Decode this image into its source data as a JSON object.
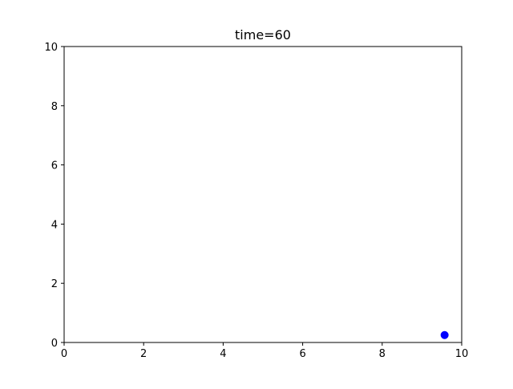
{
  "chart_data": {
    "type": "scatter",
    "title": "time=60",
    "xlabel": "",
    "ylabel": "",
    "xlim": [
      0,
      10
    ],
    "ylim": [
      0,
      10
    ],
    "x_ticks": [
      0,
      2,
      4,
      6,
      8,
      10
    ],
    "y_ticks": [
      0,
      2,
      4,
      6,
      8,
      10
    ],
    "x_tick_labels": [
      "0",
      "2",
      "4",
      "6",
      "8",
      "10"
    ],
    "y_tick_labels": [
      "0",
      "2",
      "4",
      "6",
      "8",
      "10"
    ],
    "grid": false,
    "legend": "none",
    "series": [
      {
        "points": [
          {
            "x": 9.57,
            "y": 0.25
          }
        ],
        "color": "#0000ff"
      }
    ]
  }
}
